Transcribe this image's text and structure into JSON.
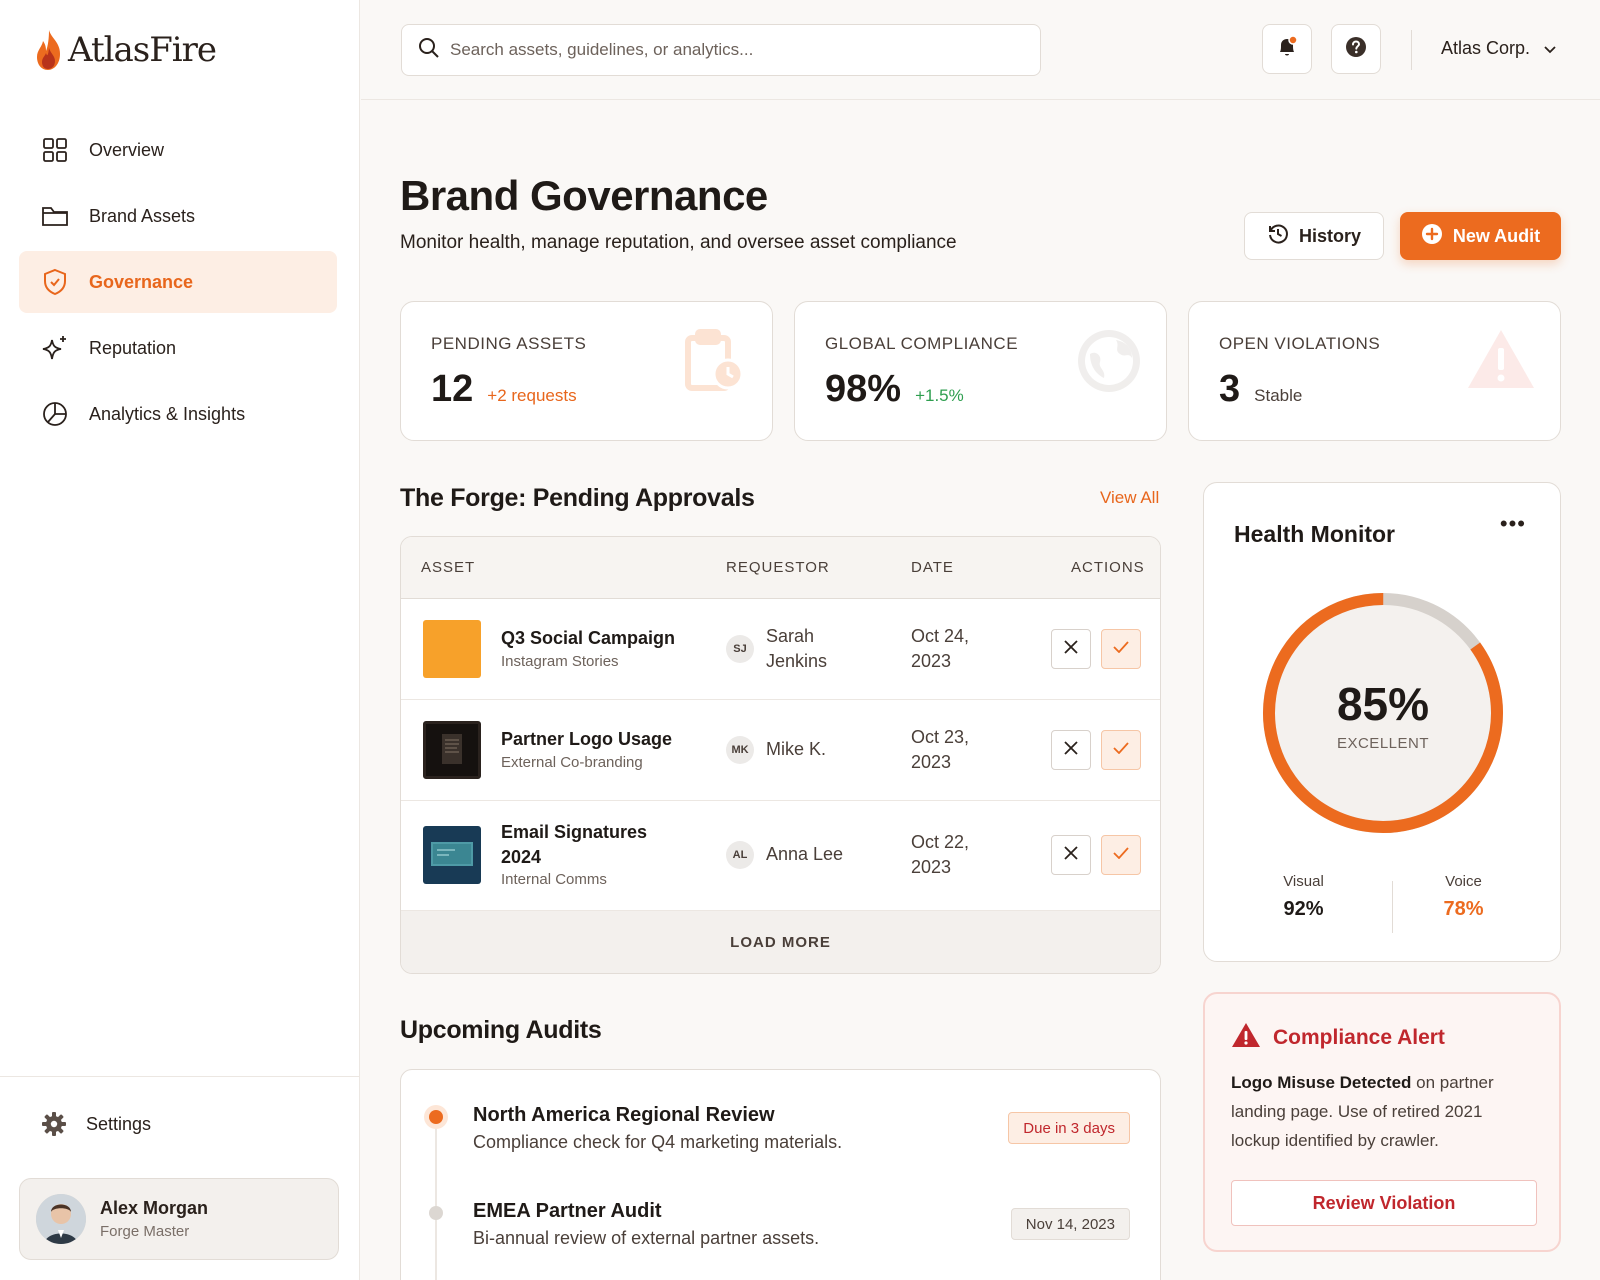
{
  "app": {
    "brand": "AtlasFire"
  },
  "sidebar": {
    "items": [
      {
        "label": "Overview",
        "icon": "grid-icon"
      },
      {
        "label": "Brand Assets",
        "icon": "folder-icon"
      },
      {
        "label": "Governance",
        "icon": "shield-icon",
        "active": true
      },
      {
        "label": "Reputation",
        "icon": "sparkle-icon"
      },
      {
        "label": "Analytics & Insights",
        "icon": "chart-pie-icon"
      }
    ],
    "settings_label": "Settings",
    "user": {
      "name": "Alex Morgan",
      "role": "Forge Master"
    }
  },
  "topbar": {
    "search_placeholder": "Search assets, guidelines, or analytics...",
    "org": "Atlas Corp."
  },
  "header": {
    "title": "Brand Governance",
    "subtitle": "Monitor health, manage reputation, and oversee asset compliance",
    "history_label": "History",
    "new_audit_label": "New Audit"
  },
  "stats": [
    {
      "label": "PENDING ASSETS",
      "value": "12",
      "delta": "+2 requests",
      "delta_color": "#e8661c"
    },
    {
      "label": "GLOBAL COMPLIANCE",
      "value": "98%",
      "delta": "+1.5%",
      "delta_color": "#2e9e4f"
    },
    {
      "label": "OPEN VIOLATIONS",
      "value": "3",
      "delta": "Stable",
      "delta_color": "#4a3f39"
    }
  ],
  "approvals": {
    "title": "The Forge: Pending Approvals",
    "view_all": "View All",
    "columns": [
      "ASSET",
      "REQUESTOR",
      "DATE",
      "ACTIONS"
    ],
    "rows": [
      {
        "name": "Q3 Social Campaign",
        "type": "Instagram Stories",
        "initials": "SJ",
        "requestor": "Sarah Jenkins",
        "date": "Oct 24, 2023"
      },
      {
        "name": "Partner Logo Usage",
        "type": "External Co-branding",
        "initials": "MK",
        "requestor": "Mike K.",
        "date": "Oct 23, 2023"
      },
      {
        "name": "Email Signatures 2024",
        "type": "Internal Comms",
        "initials": "AL",
        "requestor": "Anna Lee",
        "date": "Oct 22, 2023"
      }
    ],
    "load_more": "LOAD MORE"
  },
  "audits": {
    "title": "Upcoming Audits",
    "items": [
      {
        "title": "North America Regional Review",
        "desc": "Compliance check for Q4 marketing materials.",
        "badge": "Due in 3 days"
      },
      {
        "title": "EMEA Partner Audit",
        "desc": "Bi-annual review of external partner assets.",
        "badge": "Nov 14, 2023"
      }
    ]
  },
  "health": {
    "title": "Health Monitor",
    "score": 85,
    "score_label": "85%",
    "status": "EXCELLENT",
    "visual_label": "Visual",
    "visual_value": "92%",
    "voice_label": "Voice",
    "voice_value": "78%",
    "accent": "#ec6b1f"
  },
  "alert": {
    "title": "Compliance Alert",
    "headline": "Logo Misuse Detected",
    "body": " on partner landing page. Use of retired 2021 lockup identified by crawler.",
    "button": "Review Violation"
  }
}
